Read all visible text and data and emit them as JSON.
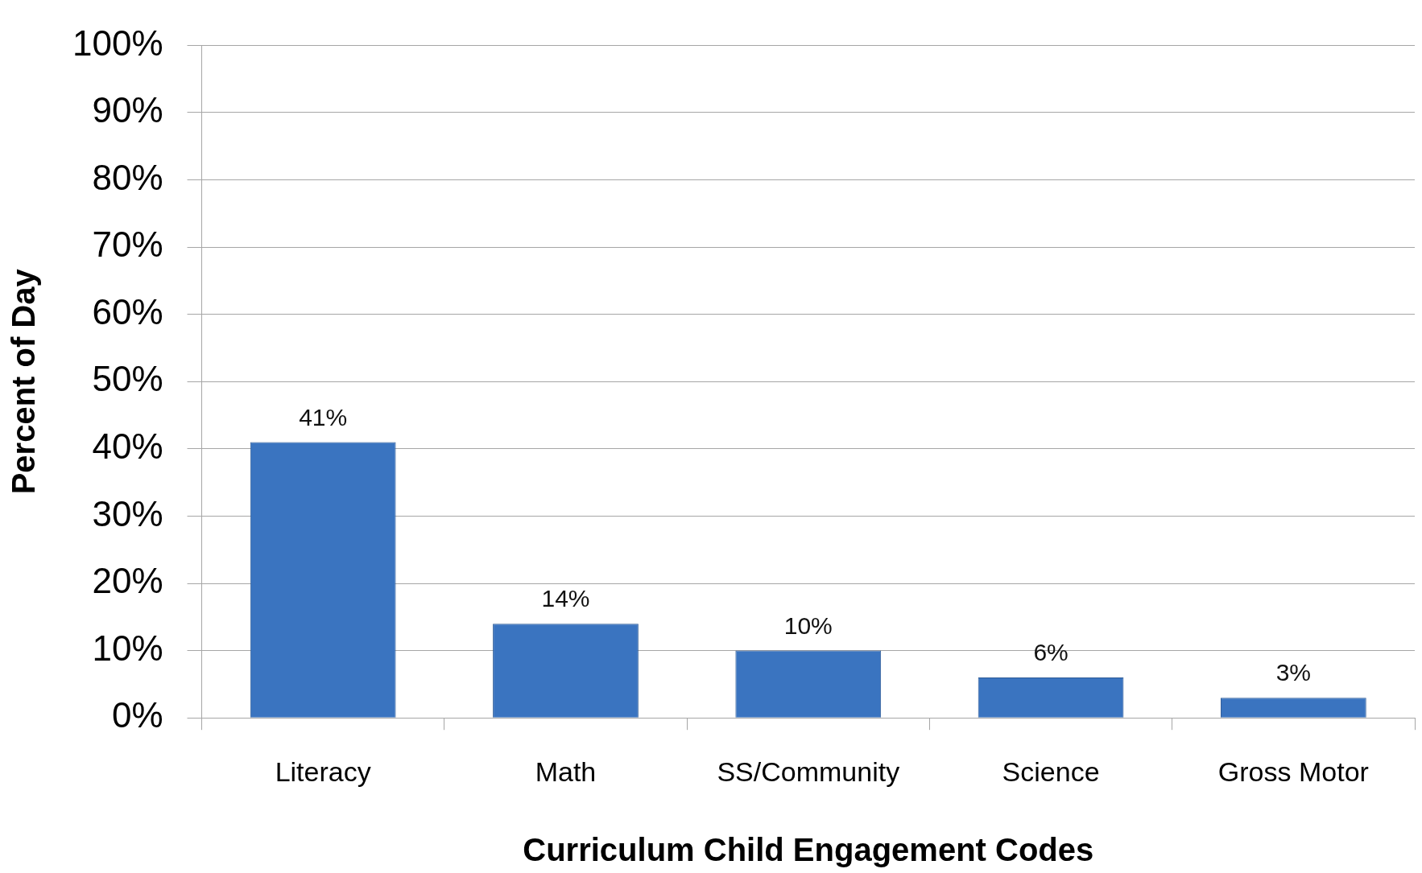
{
  "chart_data": {
    "type": "bar",
    "xlabel": "Curriculum Child Engagement Codes",
    "ylabel": "Percent of Day",
    "categories": [
      "Literacy",
      "Math",
      "SS/Community",
      "Science",
      "Gross Motor"
    ],
    "values": [
      41,
      14,
      10,
      6,
      3
    ],
    "value_labels": [
      "41%",
      "14%",
      "10%",
      "6%",
      "3%"
    ],
    "color": "#3a74c0",
    "ylim": [
      0,
      100
    ],
    "yticks": [
      {
        "value": 0,
        "label": "0%"
      },
      {
        "value": 10,
        "label": "10%"
      },
      {
        "value": 20,
        "label": "20%"
      },
      {
        "value": 30,
        "label": "30%"
      },
      {
        "value": 40,
        "label": "40%"
      },
      {
        "value": 50,
        "label": "50%"
      },
      {
        "value": 60,
        "label": "60%"
      },
      {
        "value": 70,
        "label": "70%"
      },
      {
        "value": 80,
        "label": "80%"
      },
      {
        "value": 90,
        "label": "90%"
      },
      {
        "value": 100,
        "label": "100%"
      }
    ],
    "grid": "y",
    "legend": false
  }
}
